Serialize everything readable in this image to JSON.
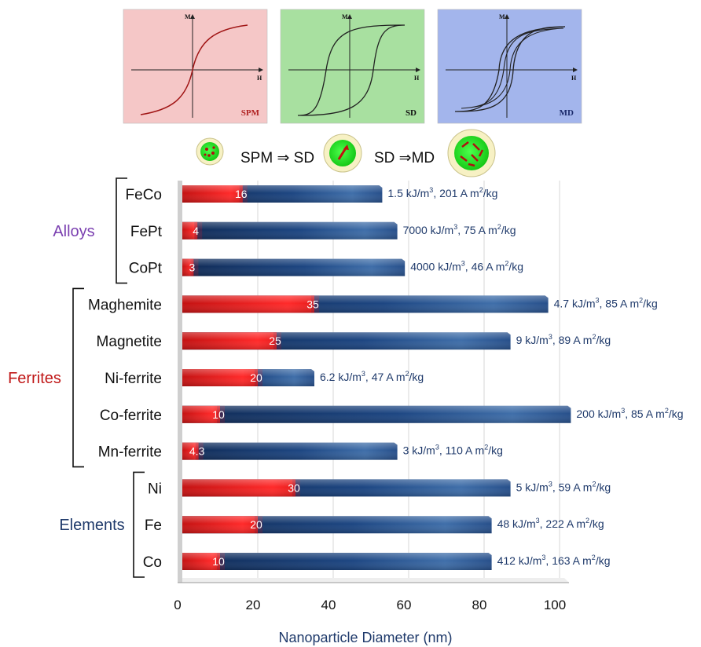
{
  "hysteresis_panels": [
    {
      "tag": "SPM",
      "bg": "#f5c7c7",
      "tag_color": "#b02020",
      "curve_color": "#a01515",
      "h_label": "H",
      "m_label": "M"
    },
    {
      "tag": "SD",
      "bg": "#a8e0a0",
      "tag_color": "#111111",
      "curve_color": "#222222",
      "h_label": "H",
      "m_label": "M"
    },
    {
      "tag": "MD",
      "bg": "#a3b5ec",
      "tag_color": "#1a2a6b",
      "curve_color": "#222222",
      "h_label": "H",
      "m_label": "M"
    }
  ],
  "transition": {
    "first": "SPM ⇒ SD",
    "second": "SD ⇒MD"
  },
  "groups": [
    {
      "name": "Alloys",
      "color": "#7a3fb0"
    },
    {
      "name": "Ferrites",
      "color": "#c01818"
    },
    {
      "name": "Elements",
      "color": "#1f3a6b"
    }
  ],
  "chart_data": {
    "type": "bar",
    "orientation": "horizontal",
    "stacked": true,
    "xlabel": "Nanoparticle Diameter (nm)",
    "xlim": [
      0,
      100
    ],
    "xticks": [
      "0",
      "20",
      "40",
      "60",
      "80",
      "100"
    ],
    "grid": true,
    "categories": [
      "FeCo",
      "FePt",
      "CoPt",
      "Maghemite",
      "Magnetite",
      "Ni-ferrite",
      "Co-ferrite",
      "Mn-ferrite",
      "Ni",
      "Fe",
      "Co"
    ],
    "group_of_category": [
      0,
      0,
      0,
      1,
      1,
      1,
      1,
      1,
      2,
      2,
      2
    ],
    "spm_limit": [
      16,
      4,
      3,
      35,
      25,
      20,
      10,
      4.3,
      30,
      20,
      10
    ],
    "spm_limit_labels": [
      "16",
      "4",
      "3",
      "35",
      "25",
      "20",
      "10",
      "4.3",
      "30",
      "20",
      "10"
    ],
    "sd_limit": [
      53,
      57,
      59,
      97,
      87,
      35,
      103,
      57,
      87,
      82,
      82
    ],
    "property_labels": [
      {
        "k": "1.5 kJ/m",
        "sup1": "3",
        "rest": ",  201 A m",
        "sup2": "2",
        "tail": "/kg"
      },
      {
        "k": "7000 kJ/m",
        "sup1": "3",
        "rest": ", 75 A m",
        "sup2": "2",
        "tail": "/kg"
      },
      {
        "k": "4000 kJ/m",
        "sup1": "3",
        "rest": ", 46 A m",
        "sup2": "2",
        "tail": "/kg"
      },
      {
        "k": "4.7 kJ/m",
        "sup1": "3",
        "rest": ", 85 A m",
        "sup2": "2",
        "tail": "/kg"
      },
      {
        "k": "9 kJ/m",
        "sup1": "3",
        "rest": ", 89 A m",
        "sup2": "2",
        "tail": "/kg"
      },
      {
        "k": "6.2 kJ/m",
        "sup1": "3",
        "rest": ", 47 A m",
        "sup2": "2",
        "tail": "/kg"
      },
      {
        "k": "200 kJ/m",
        "sup1": "3",
        "rest": ", 85 A m",
        "sup2": "2",
        "tail": "/kg"
      },
      {
        "k": "3 kJ/m",
        "sup1": "3",
        "rest": ", 110 A m",
        "sup2": "2",
        "tail": "/kg"
      },
      {
        "k": "5 kJ/m",
        "sup1": "3",
        "rest": ", 59 A m",
        "sup2": "2",
        "tail": "/kg"
      },
      {
        "k": "48 kJ/m",
        "sup1": "3",
        "rest": ", 222 A m",
        "sup2": "2",
        "tail": "/kg"
      },
      {
        "k": "412 kJ/m",
        "sup1": "3",
        "rest": ", 163 A m",
        "sup2": "2",
        "tail": "/kg"
      }
    ],
    "colors": {
      "spm": "#d81c1c",
      "sd_dark": "#13305e",
      "sd_light": "#3c6aa8"
    }
  }
}
